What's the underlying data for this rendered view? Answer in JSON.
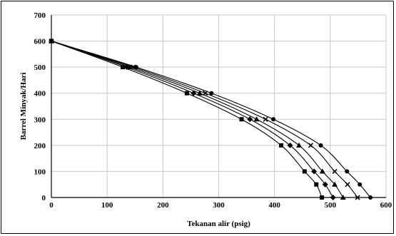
{
  "chart_data": {
    "type": "scatter",
    "xlabel": "Tekanan alir (psig)",
    "ylabel": "Barrel Minyak/Hari",
    "xlim": [
      0,
      600
    ],
    "ylim": [
      0,
      700
    ],
    "x_ticks": [
      "0",
      "100",
      "200",
      "300",
      "400",
      "500",
      "600"
    ],
    "y_ticks": [
      "0",
      "100",
      "200",
      "300",
      "400",
      "500",
      "600",
      "700"
    ],
    "grid": true,
    "legend": "none",
    "series": [
      {
        "marker": "square",
        "x": [
          0,
          128,
          243,
          341,
          412,
          454,
          475,
          485
        ],
        "y": [
          600,
          500,
          400,
          300,
          200,
          100,
          50,
          0
        ]
      },
      {
        "marker": "diamond",
        "x": [
          0,
          135,
          255,
          356,
          428,
          471,
          491,
          505
        ],
        "y": [
          600,
          500,
          400,
          300,
          200,
          100,
          50,
          0
        ]
      },
      {
        "marker": "triangle",
        "x": [
          0,
          141,
          266,
          368,
          444,
          486,
          508,
          523
        ],
        "y": [
          600,
          500,
          400,
          300,
          200,
          100,
          50,
          0
        ]
      },
      {
        "marker": "cross",
        "x": [
          0,
          147,
          276,
          384,
          465,
          508,
          531,
          549
        ],
        "y": [
          600,
          500,
          400,
          300,
          200,
          100,
          50,
          0
        ]
      },
      {
        "marker": "circle",
        "x": [
          0,
          152,
          287,
          398,
          483,
          530,
          553,
          572
        ],
        "y": [
          600,
          500,
          400,
          300,
          200,
          100,
          50,
          0
        ]
      }
    ]
  }
}
